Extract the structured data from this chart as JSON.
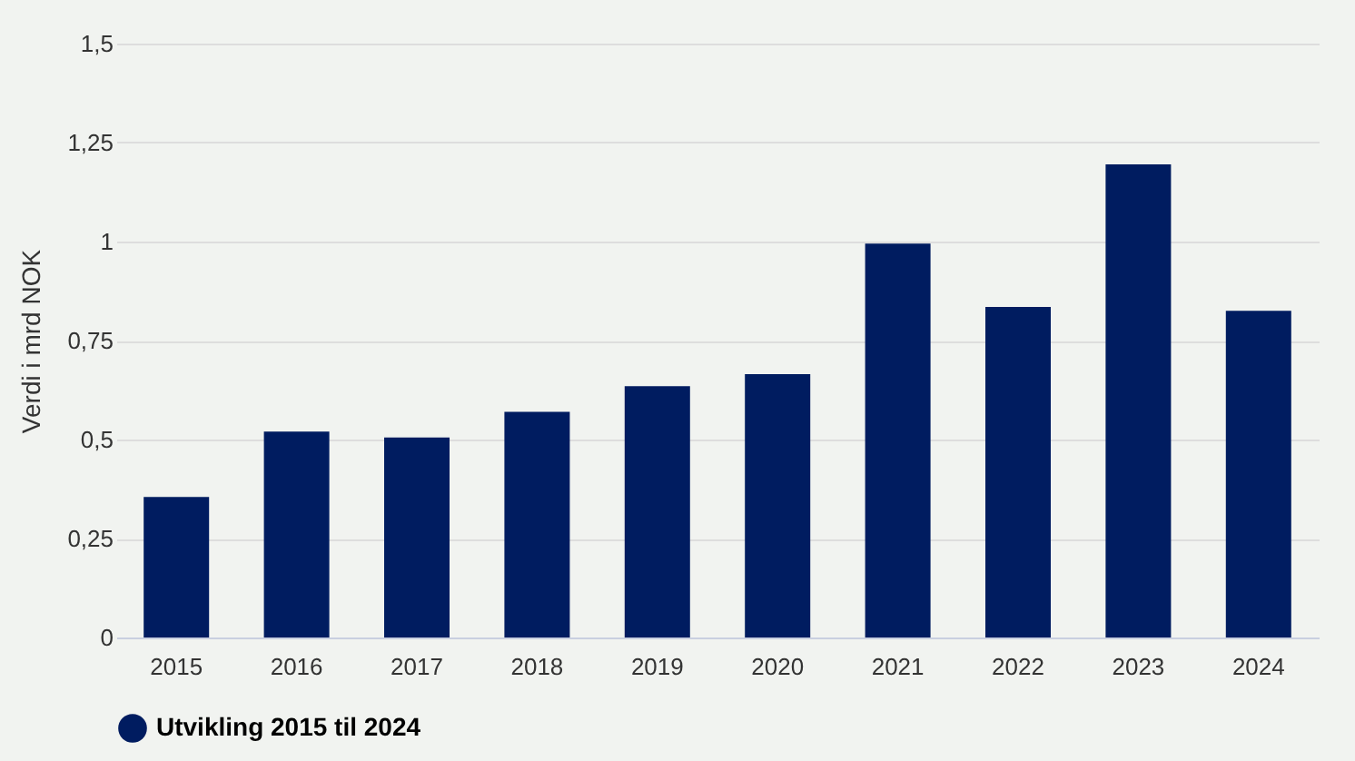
{
  "chart_data": {
    "type": "bar",
    "ylabel": "Verdi i mrd NOK",
    "categories": [
      "2015",
      "2016",
      "2017",
      "2018",
      "2019",
      "2020",
      "2021",
      "2022",
      "2023",
      "2024"
    ],
    "series": [
      {
        "name": "Utvikling 2015 til 2024",
        "color": "#001c60",
        "values": [
          0.355,
          0.52,
          0.505,
          0.57,
          0.635,
          0.665,
          0.995,
          0.835,
          1.195,
          0.825
        ]
      }
    ],
    "ylim": [
      0,
      1.5
    ],
    "yticks": [
      0,
      {
        "value": 0.25,
        "label": "0,25"
      },
      {
        "value": 0.5,
        "label": "0,5"
      },
      {
        "value": 0.75,
        "label": "0,75"
      },
      1,
      {
        "value": 1.25,
        "label": "1,25"
      },
      {
        "value": 1.5,
        "label": "1,5"
      }
    ],
    "grid": "y",
    "legend": "bottom"
  }
}
